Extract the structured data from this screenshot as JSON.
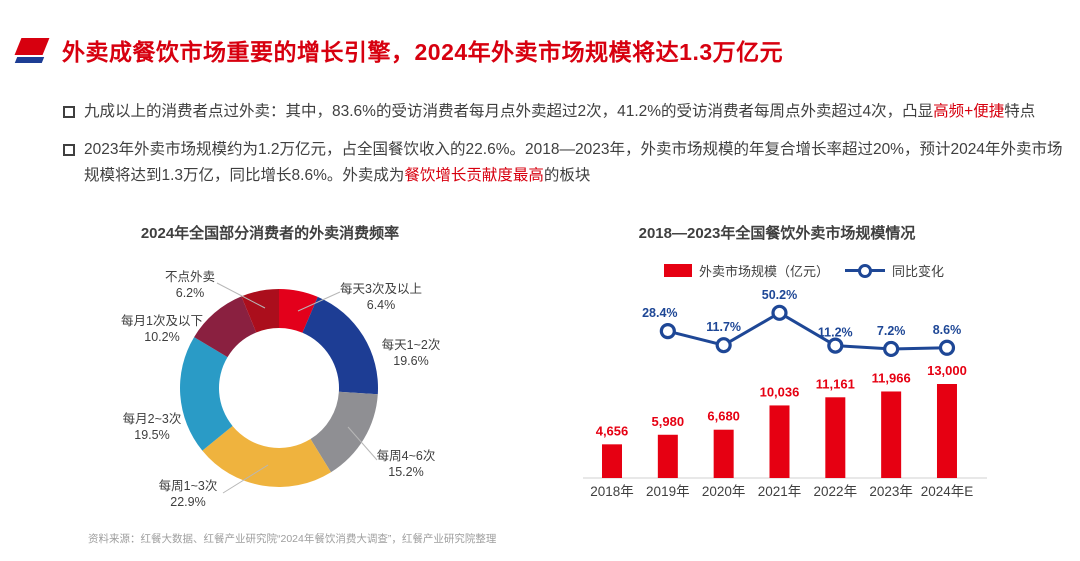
{
  "header": {
    "title": "外卖成餐饮市场重要的增长引擎，2024年外卖市场规模将达1.3万亿元"
  },
  "theme": {
    "accent_red": "#d7000f",
    "bar_red": "#e60012",
    "line_blue": "#1e4796"
  },
  "bullets": [
    {
      "segments": [
        "九成以上的消费者点过外卖：其中，83.6%的受访消费者每月点外卖超过2次，41.2%的受访消费者每周点外卖超过4次，凸显",
        "高频+便捷",
        "特点"
      ]
    },
    {
      "segments": [
        "2023年外卖市场规模约为1.2万亿元，占全国餐饮收入的22.6%。2018—2023年，外卖市场规模的年复合增长率超过20%，预计2024年外卖市场规模将达到1.3万亿，同比增长8.6%。外卖成为",
        "餐饮增长贡献度最高",
        "的板块"
      ]
    }
  ],
  "chart_data": [
    {
      "type": "pie",
      "subtype": "donut",
      "title": "2024年全国部分消费者的外卖消费频率",
      "start_angle_deg": 0,
      "segments": [
        {
          "label": "每天3次及以上",
          "value": 6.4,
          "display": "6.4%",
          "color": "#e3001b"
        },
        {
          "label": "每天1~2次",
          "value": 19.6,
          "display": "19.6%",
          "color": "#1d3d94"
        },
        {
          "label": "每周4~6次",
          "value": 15.2,
          "display": "15.2%",
          "color": "#8f8f93"
        },
        {
          "label": "每周1~3次",
          "value": 22.9,
          "display": "22.9%",
          "color": "#efb33e"
        },
        {
          "label": "每月2~3次",
          "value": 19.5,
          "display": "19.5%",
          "color": "#2a9bc6"
        },
        {
          "label": "每月1次及以下",
          "value": 10.2,
          "display": "10.2%",
          "color": "#8a2040"
        },
        {
          "label": "不点外卖",
          "value": 6.2,
          "display": "6.2%",
          "color": "#ab0e1c"
        }
      ]
    },
    {
      "type": "bar",
      "subtype": "bar-line-combo",
      "title": "2018—2023年全国餐饮外卖市场规模情况",
      "categories": [
        "2018年",
        "2019年",
        "2020年",
        "2021年",
        "2022年",
        "2023年",
        "2024年E"
      ],
      "series": [
        {
          "name": "外卖市场规模（亿元）",
          "type": "bar",
          "color": "#e60012",
          "values": [
            4656,
            5980,
            6680,
            10036,
            11161,
            11966,
            13000
          ],
          "labels": [
            "4,656",
            "5,980",
            "6,680",
            "10,036",
            "11,161",
            "11,966",
            "13,000"
          ]
        },
        {
          "name": "同比变化",
          "type": "line",
          "color": "#1e4796",
          "values": [
            null,
            28.4,
            11.7,
            50.2,
            11.2,
            7.2,
            8.6
          ],
          "labels": [
            "",
            "28.4%",
            "11.7%",
            "50.2%",
            "11.2%",
            "7.2%",
            "8.6%"
          ]
        }
      ],
      "ylim": [
        0,
        13000
      ],
      "grid": false,
      "legend_position": "top"
    }
  ],
  "footer": {
    "source": "资料来源：红餐大数据、红餐产业研究院“2024年餐饮消费大调查”，红餐产业研究院整理"
  }
}
